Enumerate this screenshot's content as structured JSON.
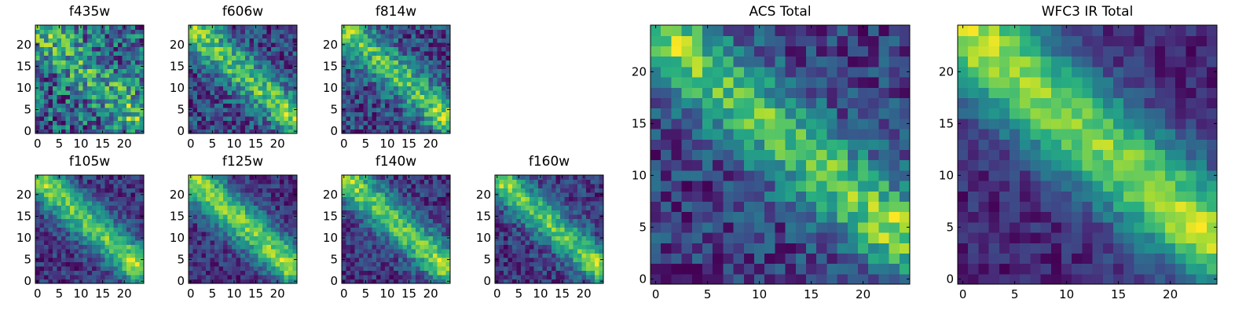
{
  "chart_data": [
    {
      "type": "heatmap",
      "title": "f435w",
      "xlim": [
        0,
        24
      ],
      "ylim": [
        0,
        24
      ],
      "xticks": [
        0,
        5,
        10,
        15,
        20
      ],
      "yticks": [
        0,
        5,
        10,
        15,
        20
      ],
      "grid_size": 25,
      "colormap": "viridis",
      "ridge": {
        "from": [
          0,
          24
        ],
        "to": [
          24,
          3
        ],
        "amplitude": 0.3,
        "width": 3.5
      },
      "noise_amplitude": 0.75,
      "seed": 11
    },
    {
      "type": "heatmap",
      "title": "f606w",
      "xlim": [
        0,
        24
      ],
      "ylim": [
        0,
        24
      ],
      "xticks": [
        0,
        5,
        10,
        15,
        20
      ],
      "yticks": [
        0,
        5,
        10,
        15,
        20
      ],
      "grid_size": 25,
      "colormap": "viridis",
      "ridge": {
        "from": [
          0,
          24
        ],
        "to": [
          24,
          3
        ],
        "amplitude": 0.6,
        "width": 3.0
      },
      "noise_amplitude": 0.55,
      "seed": 23
    },
    {
      "type": "heatmap",
      "title": "f814w",
      "xlim": [
        0,
        24
      ],
      "ylim": [
        0,
        24
      ],
      "xticks": [
        0,
        5,
        10,
        15,
        20
      ],
      "yticks": [
        0,
        5,
        10,
        15,
        20
      ],
      "grid_size": 25,
      "colormap": "viridis",
      "ridge": {
        "from": [
          0,
          24
        ],
        "to": [
          24,
          3
        ],
        "amplitude": 0.6,
        "width": 3.0
      },
      "noise_amplitude": 0.55,
      "seed": 37
    },
    {
      "type": "heatmap",
      "title": "f105w",
      "xlim": [
        0,
        24
      ],
      "ylim": [
        0,
        24
      ],
      "xticks": [
        0,
        5,
        10,
        15,
        20
      ],
      "yticks": [
        0,
        5,
        10,
        15,
        20
      ],
      "grid_size": 25,
      "colormap": "viridis",
      "ridge": {
        "from": [
          0,
          24
        ],
        "to": [
          24,
          3
        ],
        "amplitude": 0.75,
        "width": 3.0
      },
      "noise_amplitude": 0.4,
      "seed": 41
    },
    {
      "type": "heatmap",
      "title": "f125w",
      "xlim": [
        0,
        24
      ],
      "ylim": [
        0,
        24
      ],
      "xticks": [
        0,
        5,
        10,
        15,
        20
      ],
      "yticks": [
        0,
        5,
        10,
        15,
        20
      ],
      "grid_size": 25,
      "colormap": "viridis",
      "ridge": {
        "from": [
          0,
          24
        ],
        "to": [
          24,
          3
        ],
        "amplitude": 0.78,
        "width": 3.2
      },
      "noise_amplitude": 0.38,
      "seed": 53
    },
    {
      "type": "heatmap",
      "title": "f140w",
      "xlim": [
        0,
        24
      ],
      "ylim": [
        0,
        24
      ],
      "xticks": [
        0,
        5,
        10,
        15,
        20
      ],
      "yticks": [
        0,
        5,
        10,
        15,
        20
      ],
      "grid_size": 25,
      "colormap": "viridis",
      "ridge": {
        "from": [
          0,
          24
        ],
        "to": [
          24,
          3
        ],
        "amplitude": 0.75,
        "width": 3.0
      },
      "noise_amplitude": 0.42,
      "seed": 67
    },
    {
      "type": "heatmap",
      "title": "f160w",
      "xlim": [
        0,
        24
      ],
      "ylim": [
        0,
        24
      ],
      "xticks": [
        0,
        5,
        10,
        15,
        20
      ],
      "yticks": [
        0,
        5,
        10,
        15,
        20
      ],
      "grid_size": 25,
      "colormap": "viridis",
      "ridge": {
        "from": [
          0,
          24
        ],
        "to": [
          24,
          3
        ],
        "amplitude": 0.72,
        "width": 2.8
      },
      "noise_amplitude": 0.45,
      "seed": 79
    },
    {
      "type": "heatmap",
      "title": "ACS Total",
      "xlim": [
        0,
        24
      ],
      "ylim": [
        0,
        24
      ],
      "xticks": [
        0,
        5,
        10,
        15,
        20
      ],
      "yticks": [
        0,
        5,
        10,
        15,
        20
      ],
      "grid_size": 25,
      "colormap": "viridis",
      "ridge": {
        "from": [
          0,
          24
        ],
        "to": [
          24,
          4
        ],
        "amplitude": 0.62,
        "width": 2.8
      },
      "noise_amplitude": 0.45,
      "seed": 97
    },
    {
      "type": "heatmap",
      "title": "WFC3 IR Total",
      "xlim": [
        0,
        24
      ],
      "ylim": [
        0,
        24
      ],
      "xticks": [
        0,
        5,
        10,
        15,
        20
      ],
      "yticks": [
        0,
        5,
        10,
        15,
        20
      ],
      "grid_size": 25,
      "colormap": "viridis",
      "ridge": {
        "from": [
          0,
          24
        ],
        "to": [
          24,
          4
        ],
        "amplitude": 0.85,
        "width": 3.4
      },
      "noise_amplitude": 0.28,
      "seed": 131
    }
  ]
}
